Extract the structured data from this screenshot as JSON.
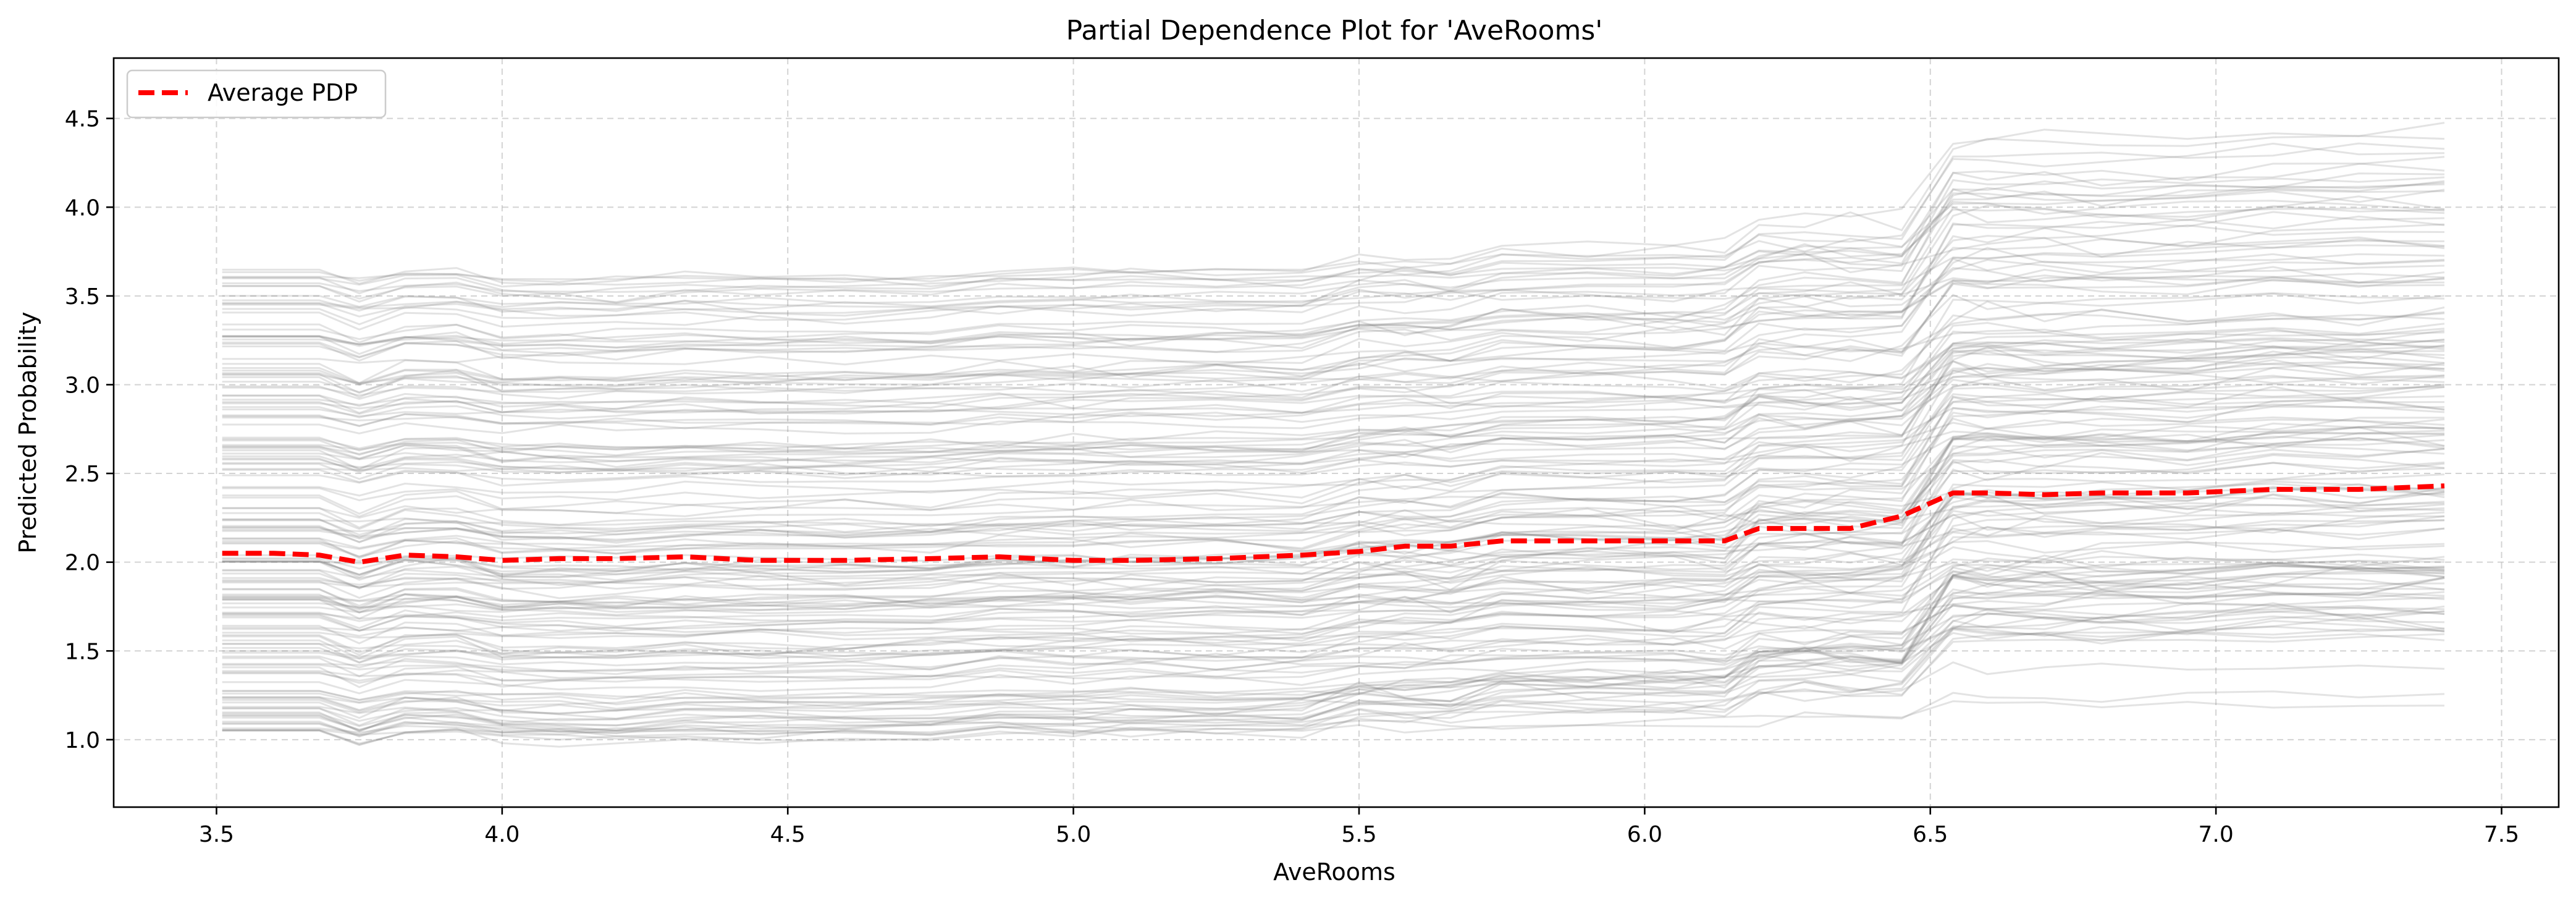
{
  "chart_data": {
    "type": "line",
    "title": "Partial Dependence Plot for 'AveRooms'",
    "xlabel": "AveRooms",
    "ylabel": "Predicted Probability",
    "xlim": [
      3.32,
      7.6
    ],
    "ylim": [
      0.62,
      4.84
    ],
    "x_ticks": [
      "3.5",
      "4.0",
      "4.5",
      "5.0",
      "5.5",
      "6.0",
      "6.5",
      "7.0",
      "7.5"
    ],
    "y_ticks": [
      "1.0",
      "1.5",
      "2.0",
      "2.5",
      "3.0",
      "3.5",
      "4.0",
      "4.5"
    ],
    "x_tick_values": [
      3.5,
      4.0,
      4.5,
      5.0,
      5.5,
      6.0,
      6.5,
      7.0,
      7.5
    ],
    "y_tick_values": [
      1.0,
      1.5,
      2.0,
      2.5,
      3.0,
      3.5,
      4.0,
      4.5
    ],
    "grid": true,
    "legend": {
      "position": "top-left",
      "entries": [
        "Average PDP"
      ]
    },
    "x": [
      3.51,
      3.6,
      3.68,
      3.75,
      3.83,
      3.92,
      4.0,
      4.1,
      4.2,
      4.32,
      4.45,
      4.6,
      4.75,
      4.87,
      5.0,
      5.1,
      5.25,
      5.4,
      5.5,
      5.58,
      5.66,
      5.75,
      5.9,
      6.05,
      6.14,
      6.2,
      6.28,
      6.36,
      6.45,
      6.54,
      6.6,
      6.7,
      6.8,
      6.95,
      7.1,
      7.25,
      7.4
    ],
    "series": [
      {
        "name": "Average PDP",
        "color": "#ff0000",
        "style": "dashed",
        "values": [
          2.05,
          2.05,
          2.04,
          2.0,
          2.04,
          2.03,
          2.01,
          2.02,
          2.02,
          2.03,
          2.01,
          2.01,
          2.02,
          2.03,
          2.01,
          2.01,
          2.02,
          2.04,
          2.06,
          2.09,
          2.09,
          2.12,
          2.12,
          2.12,
          2.12,
          2.19,
          2.19,
          2.19,
          2.26,
          2.39,
          2.39,
          2.38,
          2.39,
          2.39,
          2.41,
          2.41,
          2.43
        ]
      }
    ],
    "ice_lines": {
      "color": "#808080",
      "count": 160,
      "baseline_range": [
        1.05,
        3.65
      ],
      "step_offsets": [
        {
          "x": 3.75,
          "delta": -0.04
        },
        {
          "x": 3.83,
          "delta": 0.04
        },
        {
          "x": 4.0,
          "delta": -0.03
        },
        {
          "x": 4.32,
          "delta": 0.01
        },
        {
          "x": 4.87,
          "delta": 0.02
        },
        {
          "x": 5.5,
          "delta": 0.04
        },
        {
          "x": 5.75,
          "delta": 0.03
        },
        {
          "x": 6.2,
          "delta": 0.07
        },
        {
          "x": 6.54,
          "delta": 0.2
        },
        {
          "x": 7.1,
          "delta": 0.02
        }
      ]
    }
  }
}
